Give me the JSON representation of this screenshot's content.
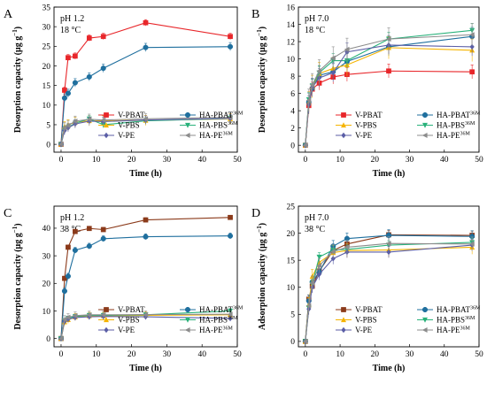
{
  "chart_data": [
    {
      "type": "line",
      "panel": "A",
      "conditions": [
        "pH 1.2",
        "18 °C"
      ],
      "xlabel": "Time (h)",
      "ylabel": "Desorption capacity (μg g",
      "ylabel_sup": "−1",
      "ylabel_end": ")",
      "xlim": [
        -2,
        50
      ],
      "ylim": [
        -2,
        35
      ],
      "xticks": [
        0,
        10,
        20,
        30,
        40,
        50
      ],
      "yticks": [
        0,
        5,
        10,
        15,
        20,
        25,
        30,
        35
      ],
      "legend_position": "bottom-center",
      "series": [
        {
          "name": "V-PBAT",
          "sup": "",
          "color": "#e8262a",
          "marker": "square",
          "x": [
            0,
            1,
            2,
            4,
            8,
            12,
            24,
            48
          ],
          "y": [
            0,
            13.8,
            22.1,
            22.5,
            27.1,
            27.5,
            31.0,
            27.5
          ]
        },
        {
          "name": "HA-PBAT",
          "sup": "36M",
          "color": "#1f6f9e",
          "marker": "circle",
          "x": [
            0,
            1,
            2,
            4,
            8,
            12,
            24,
            48
          ],
          "y": [
            0,
            11.8,
            13.0,
            15.7,
            17.2,
            19.4,
            24.7,
            24.9
          ]
        },
        {
          "name": "V-PBS",
          "sup": "",
          "color": "#f5b400",
          "marker": "triangle-up",
          "x": [
            0,
            1,
            2,
            4,
            8,
            12,
            24,
            48
          ],
          "y": [
            0,
            4.5,
            5.0,
            5.6,
            6.0,
            6.0,
            6.1,
            6.5
          ]
        },
        {
          "name": "HA-PBS",
          "sup": "36M",
          "color": "#2ab27b",
          "marker": "triangle-down",
          "x": [
            0,
            1,
            2,
            4,
            8,
            12,
            24,
            48
          ],
          "y": [
            0,
            3.8,
            4.3,
            5.4,
            6.5,
            5.0,
            6.0,
            6.6
          ]
        },
        {
          "name": "V-PE",
          "sup": "",
          "color": "#5b5ea6",
          "marker": "diamond",
          "x": [
            0,
            1,
            2,
            4,
            8,
            12,
            24,
            48
          ],
          "y": [
            0,
            3.5,
            4.2,
            5.2,
            5.9,
            5.8,
            6.2,
            6.6
          ]
        },
        {
          "name": "HA-PE",
          "sup": "36M",
          "color": "#8c8c8c",
          "marker": "triangle-left",
          "x": [
            0,
            1,
            2,
            4,
            8,
            12,
            24,
            48
          ],
          "y": [
            0,
            4.2,
            4.8,
            5.9,
            6.4,
            6.2,
            6.5,
            6.9
          ]
        }
      ]
    },
    {
      "type": "line",
      "panel": "B",
      "conditions": [
        "pH 7.0",
        "18 °C"
      ],
      "xlabel": "Time (h)",
      "ylabel": "Desorption capacity (μg g",
      "ylabel_sup": "−1",
      "ylabel_end": ")",
      "xlim": [
        -2,
        50
      ],
      "ylim": [
        -0.8,
        16
      ],
      "xticks": [
        0,
        10,
        20,
        30,
        40,
        50
      ],
      "yticks": [
        0,
        2,
        4,
        6,
        8,
        10,
        12,
        14,
        16
      ],
      "legend_position": "bottom-right",
      "series": [
        {
          "name": "V-PBAT",
          "sup": "",
          "color": "#e8262a",
          "marker": "square",
          "x": [
            0,
            1,
            2,
            4,
            8,
            12,
            24,
            48
          ],
          "y": [
            0,
            4.6,
            6.5,
            7.2,
            7.9,
            8.2,
            8.6,
            8.5
          ]
        },
        {
          "name": "HA-PBAT",
          "sup": "36M",
          "color": "#1f6f9e",
          "marker": "circle",
          "x": [
            0,
            1,
            2,
            4,
            8,
            12,
            24,
            48
          ],
          "y": [
            0,
            5.0,
            6.6,
            8.1,
            8.5,
            9.7,
            11.4,
            12.6
          ]
        },
        {
          "name": "V-PBS",
          "sup": "",
          "color": "#f5b400",
          "marker": "triangle-up",
          "x": [
            0,
            1,
            2,
            4,
            8,
            12,
            24,
            48
          ],
          "y": [
            0,
            4.9,
            6.8,
            8.3,
            8.9,
            9.3,
            11.3,
            11.0
          ]
        },
        {
          "name": "HA-PBS",
          "sup": "36M",
          "color": "#2ab27b",
          "marker": "triangle-down",
          "x": [
            0,
            1,
            2,
            4,
            8,
            12,
            24,
            48
          ],
          "y": [
            0,
            5.3,
            6.9,
            8.4,
            9.8,
            9.8,
            12.3,
            13.3
          ]
        },
        {
          "name": "V-PE",
          "sup": "",
          "color": "#5b5ea6",
          "marker": "diamond",
          "x": [
            0,
            1,
            2,
            4,
            8,
            12,
            24,
            48
          ],
          "y": [
            0,
            4.7,
            6.7,
            7.8,
            8.4,
            10.8,
            11.6,
            11.4
          ]
        },
        {
          "name": "HA-PE",
          "sup": "36M",
          "color": "#8c8c8c",
          "marker": "triangle-left",
          "x": [
            0,
            1,
            2,
            4,
            8,
            12,
            24,
            48
          ],
          "y": [
            0,
            5.2,
            7.0,
            8.6,
            10.1,
            11.1,
            12.3,
            12.8
          ]
        }
      ]
    },
    {
      "type": "line",
      "panel": "C",
      "conditions": [
        "pH 1.2",
        "38 °C"
      ],
      "xlabel": "Time (h)",
      "ylabel": "Desorption capacity (μg g",
      "ylabel_sup": "−1",
      "ylabel_end": ")",
      "xlim": [
        -2,
        50
      ],
      "ylim": [
        -3,
        48
      ],
      "xticks": [
        0,
        10,
        20,
        30,
        40,
        50
      ],
      "yticks": [
        0,
        10,
        20,
        30,
        40
      ],
      "legend_position": "bottom-center",
      "series": [
        {
          "name": "V-PBAT",
          "sup": "",
          "color": "#8b3a1a",
          "marker": "square",
          "x": [
            0,
            1,
            2,
            4,
            8,
            12,
            24,
            48
          ],
          "y": [
            0,
            21.8,
            33.1,
            38.8,
            39.9,
            39.5,
            43.0,
            43.9
          ]
        },
        {
          "name": "HA-PBAT",
          "sup": "36M",
          "color": "#1f6f9e",
          "marker": "circle",
          "x": [
            0,
            1,
            2,
            4,
            8,
            12,
            24,
            48
          ],
          "y": [
            0,
            17.2,
            22.6,
            32.0,
            33.5,
            36.2,
            36.9,
            37.2
          ]
        },
        {
          "name": "V-PBS",
          "sup": "",
          "color": "#f5b400",
          "marker": "triangle-up",
          "x": [
            0,
            1,
            2,
            4,
            8,
            12,
            24,
            48
          ],
          "y": [
            0,
            6.0,
            6.8,
            7.8,
            8.2,
            8.2,
            8.4,
            8.6
          ]
        },
        {
          "name": "HA-PBS",
          "sup": "36M",
          "color": "#2ab27b",
          "marker": "triangle-down",
          "x": [
            0,
            1,
            2,
            4,
            8,
            12,
            24,
            48
          ],
          "y": [
            0,
            6.5,
            7.3,
            8.0,
            8.4,
            8.4,
            8.6,
            10.0
          ]
        },
        {
          "name": "V-PE",
          "sup": "",
          "color": "#5b5ea6",
          "marker": "diamond",
          "x": [
            0,
            1,
            2,
            4,
            8,
            12,
            24,
            48
          ],
          "y": [
            0,
            6.2,
            7.0,
            7.6,
            7.9,
            8.0,
            7.9,
            7.3
          ]
        },
        {
          "name": "HA-PE",
          "sup": "36M",
          "color": "#8c8c8c",
          "marker": "triangle-left",
          "x": [
            0,
            1,
            2,
            4,
            8,
            12,
            24,
            48
          ],
          "y": [
            0,
            7.0,
            7.7,
            8.3,
            8.6,
            8.6,
            8.7,
            8.8
          ]
        }
      ]
    },
    {
      "type": "line",
      "panel": "D",
      "conditions": [
        "pH 7.0",
        "38 °C"
      ],
      "xlabel": "Time (h)",
      "ylabel": "Adsorption capacity (μg g",
      "ylabel_sup": "−1",
      "ylabel_end": ")",
      "xlim": [
        -2,
        50
      ],
      "ylim": [
        -1,
        25
      ],
      "xticks": [
        0,
        10,
        20,
        30,
        40,
        50
      ],
      "yticks": [
        0,
        5,
        10,
        15,
        20,
        25
      ],
      "legend_position": "bottom-right",
      "series": [
        {
          "name": "V-PBAT",
          "sup": "",
          "color": "#8b3a1a",
          "marker": "square",
          "x": [
            0,
            1,
            2,
            4,
            8,
            12,
            24,
            48
          ],
          "y": [
            0,
            7.8,
            10.2,
            13.0,
            16.8,
            18.0,
            19.7,
            19.6
          ]
        },
        {
          "name": "HA-PBAT",
          "sup": "36M",
          "color": "#1f6f9e",
          "marker": "circle",
          "x": [
            0,
            1,
            2,
            4,
            8,
            12,
            24,
            48
          ],
          "y": [
            0,
            7.5,
            11.0,
            12.8,
            17.6,
            19.0,
            19.6,
            19.4
          ]
        },
        {
          "name": "V-PBS",
          "sup": "",
          "color": "#f5b400",
          "marker": "triangle-up",
          "x": [
            0,
            1,
            2,
            4,
            8,
            12,
            24,
            48
          ],
          "y": [
            0,
            6.8,
            12.0,
            14.6,
            16.4,
            16.8,
            16.9,
            17.4
          ]
        },
        {
          "name": "HA-PBS",
          "sup": "36M",
          "color": "#2ab27b",
          "marker": "triangle-down",
          "x": [
            0,
            1,
            2,
            4,
            8,
            12,
            24,
            48
          ],
          "y": [
            0,
            6.2,
            10.6,
            15.6,
            16.9,
            17.0,
            17.8,
            18.3
          ]
        },
        {
          "name": "V-PE",
          "sup": "",
          "color": "#5b5ea6",
          "marker": "diamond",
          "x": [
            0,
            1,
            2,
            4,
            8,
            12,
            24,
            48
          ],
          "y": [
            0,
            6.0,
            10.0,
            12.4,
            15.3,
            16.5,
            16.5,
            17.8
          ]
        },
        {
          "name": "HA-PE",
          "sup": "36M",
          "color": "#8c8c8c",
          "marker": "triangle-left",
          "x": [
            0,
            1,
            2,
            4,
            8,
            12,
            24,
            48
          ],
          "y": [
            0,
            6.6,
            10.8,
            14.0,
            16.6,
            17.4,
            18.1,
            18.0
          ]
        }
      ]
    }
  ]
}
